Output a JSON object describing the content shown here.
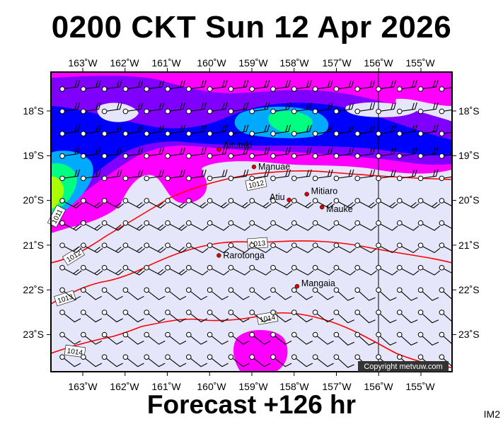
{
  "header": {
    "title": "0200 CKT Sun 12 Apr 2026"
  },
  "footer": {
    "forecast": "Forecast +126 hr",
    "code": "IM2"
  },
  "axes": {
    "lon_labels": [
      "163˚W",
      "162˚W",
      "161˚W",
      "160˚W",
      "159˚W",
      "158˚W",
      "157˚W",
      "156˚W",
      "155˚W"
    ],
    "lat_labels": [
      "18˚S",
      "19˚S",
      "20˚S",
      "21˚S",
      "22˚S",
      "23˚S"
    ]
  },
  "places": [
    {
      "name": "Aitutaki",
      "lon": -159.78,
      "lat": -18.86
    },
    {
      "name": "Manuae",
      "lon": -158.95,
      "lat": -19.25
    },
    {
      "name": "Mitiaro",
      "lon": -157.7,
      "lat": -19.86
    },
    {
      "name": "Atiu",
      "lon": -158.12,
      "lat": -19.99
    },
    {
      "name": "Mauke",
      "lon": -157.34,
      "lat": -20.15
    },
    {
      "name": "Rarotonga",
      "lon": -159.78,
      "lat": -21.23
    },
    {
      "name": "Mangaia",
      "lon": -157.93,
      "lat": -21.92
    }
  ],
  "isobars": [
    {
      "label": "1011"
    },
    {
      "label": "1012"
    },
    {
      "label": "1012"
    },
    {
      "label": "1013"
    },
    {
      "label": "1013"
    },
    {
      "label": "1014"
    },
    {
      "label": "1014"
    }
  ],
  "copyright": "Copyright metvuw.com",
  "colors": {
    "background": "#e6e6fa",
    "isobar": "#ff0000",
    "place_marker": "#dd0000",
    "wind_high": "#ff00ff",
    "wind_higher": "#8000ff",
    "wind_strong": "#0000ff",
    "wind_stronger": "#00aaff",
    "wind_max": "#00ff80"
  }
}
